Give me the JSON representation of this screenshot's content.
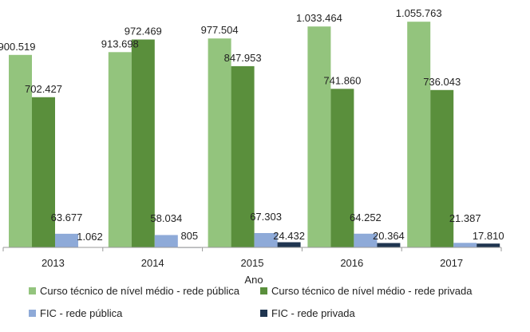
{
  "chart_data": {
    "type": "bar",
    "title": "",
    "xlabel": "Ano",
    "ylabel": "",
    "ylim": [
      0,
      1120000
    ],
    "grid": false,
    "legend_position": "bottom",
    "categories": [
      "2013",
      "2014",
      "2015",
      "2016",
      "2017"
    ],
    "series": [
      {
        "name": "Curso técnico de nível médio - rede pública",
        "color": "#93c47d",
        "values": [
          900519,
          913698,
          977504,
          1033464,
          1055763
        ],
        "labels": [
          "900.519",
          "913.698",
          "977.504",
          "1.033.464",
          "1.055.763"
        ]
      },
      {
        "name": "Curso técnico de nível médio - rede privada",
        "color": "#5a8f3c",
        "values": [
          702427,
          972469,
          847953,
          741860,
          736043
        ],
        "labels": [
          "702.427",
          "972.469",
          "847.953",
          "741.860",
          "736.043"
        ]
      },
      {
        "name": "FIC - rede pública",
        "color": "#8eaad8",
        "values": [
          63677,
          58034,
          67303,
          64252,
          21387
        ],
        "labels": [
          "63.677",
          "58.034",
          "67.303",
          "64.252",
          "21.387"
        ]
      },
      {
        "name": "FIC - rede privada",
        "color": "#1f3550",
        "values": [
          1062,
          805,
          24432,
          20364,
          17810
        ],
        "labels": [
          "1.062",
          "805",
          "24.432",
          "20.364",
          "17.810"
        ]
      }
    ]
  }
}
